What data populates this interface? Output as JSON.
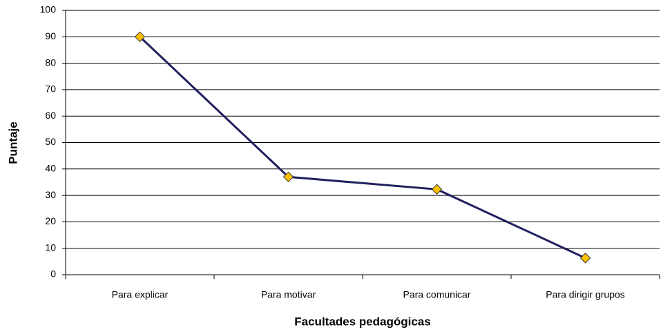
{
  "chart_data": {
    "type": "line",
    "x_label": "Facultades pedagógicas",
    "y_label": "Puntaje",
    "categories": [
      "Para explicar",
      "Para motivar",
      "Para comunicar",
      "Para dirigir grupos"
    ],
    "values": [
      90,
      37,
      32.3,
      6.3
    ],
    "color": "#1f1f5f",
    "marker_color": "#ffc000",
    "ylim": [
      0,
      100
    ],
    "yticks": [
      0,
      10,
      20,
      30,
      40,
      50,
      60,
      70,
      80,
      90,
      100
    ],
    "grid": true
  }
}
